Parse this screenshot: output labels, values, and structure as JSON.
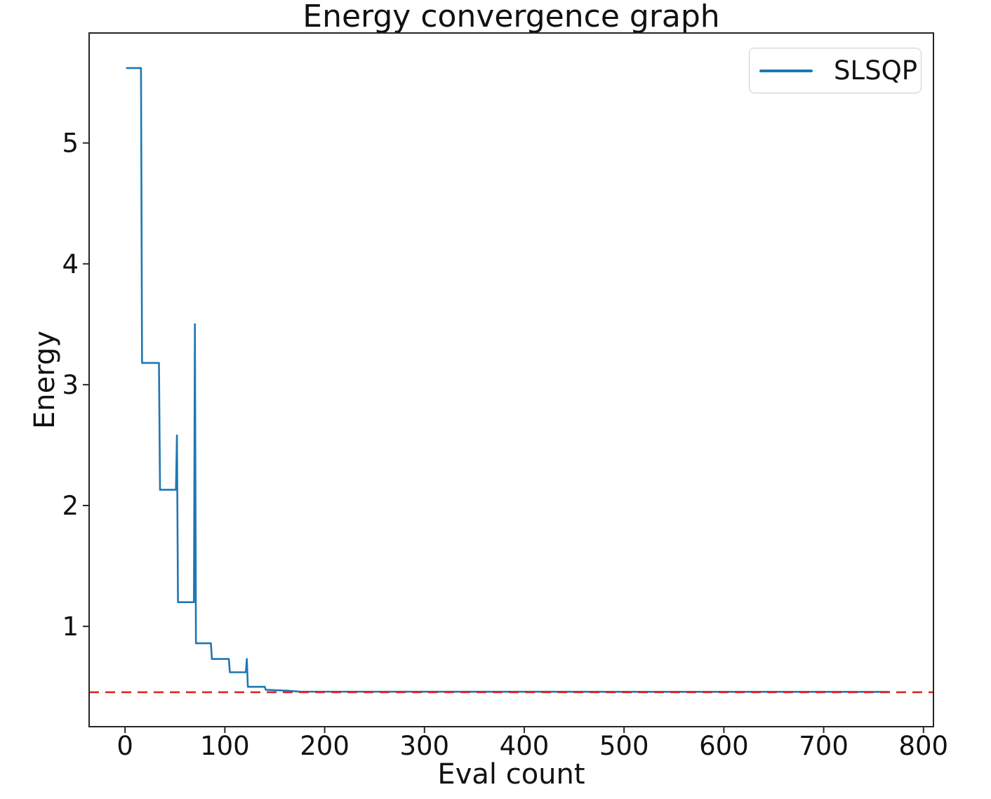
{
  "figure": {
    "background": "#ffffff",
    "text_color": "#111111",
    "spine_color": "#262626"
  },
  "chart_data": {
    "type": "line",
    "title": "Energy convergence graph",
    "xlabel": "Eval count",
    "ylabel": "Energy",
    "xlim": [
      -36,
      810
    ],
    "ylim": [
      0.17,
      5.91
    ],
    "x_ticks": [
      0,
      100,
      200,
      300,
      400,
      500,
      600,
      700,
      800
    ],
    "y_ticks": [
      1,
      2,
      3,
      4,
      5
    ],
    "grid": false,
    "legend_position": "upper-right",
    "series": [
      {
        "name": "SLSQP",
        "color": "#1f77b4",
        "style": "solid",
        "points": [
          [
            1,
            5.62
          ],
          [
            16,
            5.62
          ],
          [
            17,
            3.18
          ],
          [
            34,
            3.18
          ],
          [
            35,
            2.13
          ],
          [
            51,
            2.13
          ],
          [
            52,
            2.58
          ],
          [
            53,
            1.2
          ],
          [
            69,
            1.2
          ],
          [
            70,
            3.5
          ],
          [
            71,
            0.86
          ],
          [
            86,
            0.86
          ],
          [
            87,
            0.73
          ],
          [
            104,
            0.73
          ],
          [
            105,
            0.62
          ],
          [
            121,
            0.62
          ],
          [
            122,
            0.73
          ],
          [
            123,
            0.5
          ],
          [
            140,
            0.5
          ],
          [
            141,
            0.475
          ],
          [
            162,
            0.468
          ],
          [
            175,
            0.46
          ],
          [
            766,
            0.458
          ]
        ]
      }
    ],
    "reference_line": {
      "value": 0.455,
      "color": "#d62728",
      "style": "dashed"
    }
  }
}
